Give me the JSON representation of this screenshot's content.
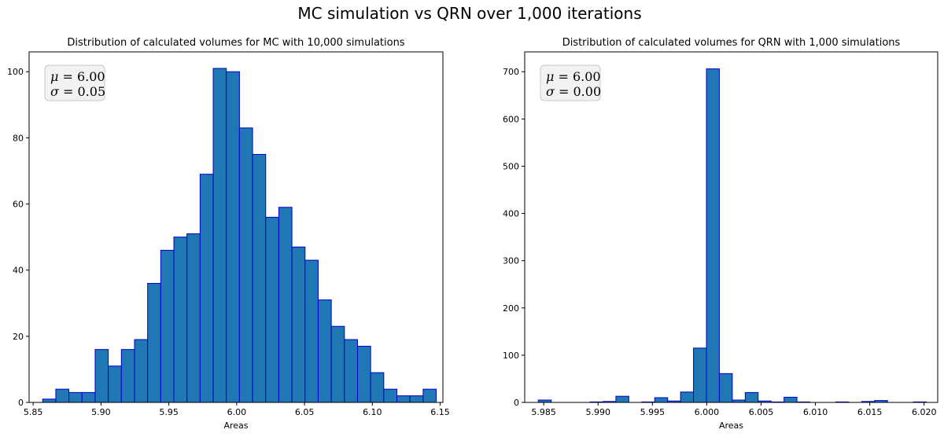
{
  "figure": {
    "title": "MC simulation vs QRN over 1,000 iterations"
  },
  "chart_data": [
    {
      "type": "bar",
      "title": "Distribution of calculated volumes for MC with 10,000 simulations",
      "xlabel": "Areas",
      "ylabel": "",
      "xlim": [
        5.847,
        6.152
      ],
      "ylim": [
        0,
        106
      ],
      "xticks": [
        5.85,
        5.9,
        5.95,
        6.0,
        6.05,
        6.1,
        6.15
      ],
      "xtick_labels": [
        "5.85",
        "5.90",
        "5.95",
        "6.00",
        "6.05",
        "6.10",
        "6.15"
      ],
      "yticks": [
        0,
        20,
        40,
        60,
        80,
        100
      ],
      "ytick_labels": [
        "0",
        "20",
        "40",
        "60",
        "80",
        "100"
      ],
      "bin_start": 5.857,
      "bin_width": 0.00967,
      "values": [
        1,
        4,
        3,
        3,
        16,
        11,
        16,
        19,
        36,
        46,
        50,
        51,
        69,
        101,
        100,
        83,
        75,
        56,
        59,
        47,
        43,
        31,
        23,
        19,
        17,
        9,
        4,
        2,
        2,
        4
      ],
      "bar_color": "#1f77b4",
      "edge_color": "#0000cd",
      "annotation": {
        "mu_label": "μ",
        "mu_value": "6.00",
        "sigma_label": "σ",
        "sigma_value": "0.05"
      }
    },
    {
      "type": "bar",
      "title": "Distribution of calculated volumes for QRN with 1,000 simulations",
      "xlabel": "Areas",
      "ylabel": "",
      "xlim": [
        5.98325,
        6.02125
      ],
      "ylim": [
        0,
        742
      ],
      "xticks": [
        5.985,
        5.99,
        5.995,
        6.0,
        6.005,
        6.01,
        6.015,
        6.02
      ],
      "xtick_labels": [
        "5.985",
        "5.990",
        "5.995",
        "6.000",
        "6.005",
        "6.010",
        "6.015",
        "6.020"
      ],
      "yticks": [
        0,
        100,
        200,
        300,
        400,
        500,
        600,
        700
      ],
      "ytick_labels": [
        "0",
        "100",
        "200",
        "300",
        "400",
        "500",
        "600",
        "700"
      ],
      "bin_start": 5.9845,
      "bin_width": 0.00119,
      "values": [
        5,
        0,
        0,
        0,
        1,
        2,
        13,
        0,
        1,
        10,
        3,
        22,
        115,
        706,
        61,
        5,
        21,
        3,
        1,
        11,
        1,
        0,
        0,
        1,
        0,
        2,
        4,
        0,
        0,
        1
      ],
      "bar_color": "#1f77b4",
      "edge_color": "#0000cd",
      "annotation": {
        "mu_label": "μ",
        "mu_value": "6.00",
        "sigma_label": "σ",
        "sigma_value": "0.00"
      }
    }
  ]
}
